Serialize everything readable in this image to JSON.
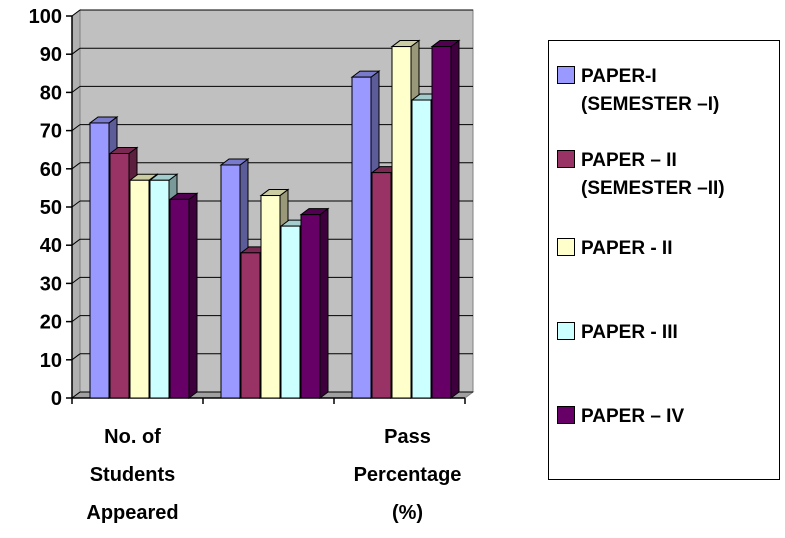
{
  "chart_data": {
    "type": "bar",
    "categories": [
      [
        "No. of",
        "Students",
        "Appeared"
      ],
      [],
      [
        "Pass",
        "Percentage",
        "(%)"
      ]
    ],
    "series": [
      {
        "name": "PAPER-I (SEMESTER –I)",
        "color": "#9999ff",
        "values": [
          72,
          61,
          84
        ]
      },
      {
        "name": "PAPER – II (SEMESTER –II)",
        "color": "#993366",
        "values": [
          64,
          38,
          59
        ]
      },
      {
        "name": "PAPER - II",
        "color": "#ffffcc",
        "values": [
          57,
          53,
          92
        ]
      },
      {
        "name": "PAPER - III",
        "color": "#ccffff",
        "values": [
          57,
          45,
          78
        ]
      },
      {
        "name": "PAPER – IV",
        "color": "#660066",
        "values": [
          52,
          48,
          92
        ]
      }
    ],
    "ylim": [
      0,
      100
    ],
    "yticks": [
      0,
      10,
      20,
      30,
      40,
      50,
      60,
      70,
      80,
      90,
      100
    ],
    "grid": true,
    "legend_position": "right"
  },
  "legend": {
    "items": [
      {
        "label": "PAPER-I\n(SEMESTER –I)"
      },
      {
        "label": "PAPER – II\n(SEMESTER –II)"
      },
      {
        "label": "PAPER - II"
      },
      {
        "label": "PAPER - III"
      },
      {
        "label": "PAPER – IV"
      }
    ]
  }
}
